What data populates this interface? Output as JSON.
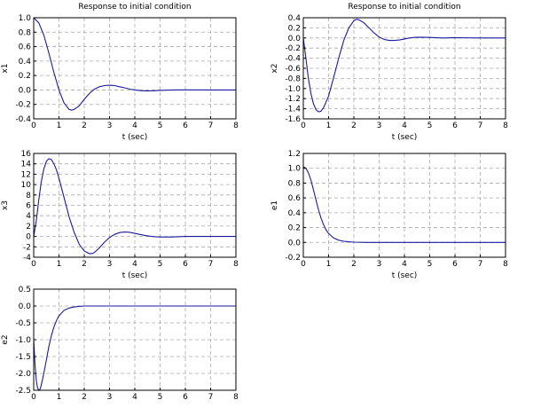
{
  "line_color": "#1b1b9e",
  "grid": true,
  "chart_data": [
    {
      "type": "line",
      "title": "Response to initial condition",
      "xlabel": "t (sec)",
      "ylabel": "x1",
      "xlim": [
        0,
        8
      ],
      "ylim": [
        -0.4,
        1.0
      ],
      "xticks": [
        0,
        1,
        2,
        3,
        4,
        5,
        6,
        7,
        8
      ],
      "xtick_labels": [
        "0",
        "1",
        "2",
        "3",
        "4",
        "5",
        "6",
        "7",
        "8"
      ],
      "yticks": [
        -0.4,
        -0.2,
        0.0,
        0.2,
        0.4,
        0.6,
        0.8,
        1.0
      ],
      "ytick_labels": [
        "-0.4",
        "-0.2",
        "0.0",
        "0.2",
        "0.4",
        "0.6",
        "0.8",
        "1.0"
      ],
      "series": [
        {
          "x": [
            0,
            0.2,
            0.4,
            0.6,
            0.8,
            1.0,
            1.2,
            1.4,
            1.5,
            1.6,
            1.8,
            2.0,
            2.2,
            2.4,
            2.6,
            2.8,
            3.0,
            3.2,
            3.4,
            3.6,
            3.8,
            4.0,
            4.2,
            4.4,
            4.6,
            4.8,
            5.0,
            5.5,
            6.0,
            7.0,
            8.0
          ],
          "y": [
            1.0,
            0.93,
            0.76,
            0.51,
            0.24,
            0.0,
            -0.18,
            -0.27,
            -0.28,
            -0.27,
            -0.22,
            -0.13,
            -0.05,
            0.01,
            0.045,
            0.06,
            0.065,
            0.06,
            0.045,
            0.03,
            0.012,
            0.0,
            -0.008,
            -0.012,
            -0.012,
            -0.01,
            -0.006,
            0.0,
            0.002,
            0.0,
            0.0
          ]
        }
      ]
    },
    {
      "type": "line",
      "title": "Response to initial condition",
      "xlabel": "t (sec)",
      "ylabel": "x2",
      "xlim": [
        0,
        8
      ],
      "ylim": [
        -1.6,
        0.4
      ],
      "xticks": [
        0,
        1,
        2,
        3,
        4,
        5,
        6,
        7,
        8
      ],
      "xtick_labels": [
        "0",
        "1",
        "2",
        "3",
        "4",
        "5",
        "6",
        "7",
        "8"
      ],
      "yticks": [
        -1.6,
        -1.4,
        -1.2,
        -1.0,
        -0.8,
        -0.6,
        -0.4,
        -0.2,
        0.0,
        0.2,
        0.4
      ],
      "ytick_labels": [
        "-1.6",
        "-1.4",
        "-1.2",
        "-1.0",
        "-0.8",
        "-0.6",
        "-0.4",
        "-0.2",
        "0.0",
        "0.2",
        "0.4"
      ],
      "series": [
        {
          "x": [
            0,
            0.1,
            0.2,
            0.3,
            0.4,
            0.5,
            0.6,
            0.7,
            0.8,
            1.0,
            1.2,
            1.4,
            1.6,
            1.8,
            2.0,
            2.1,
            2.2,
            2.4,
            2.6,
            2.8,
            3.0,
            3.2,
            3.4,
            3.6,
            3.8,
            4.0,
            4.2,
            4.4,
            4.6,
            5.0,
            5.5,
            6.0,
            7.0,
            8.0
          ],
          "y": [
            0.0,
            -0.4,
            -0.8,
            -1.1,
            -1.3,
            -1.42,
            -1.46,
            -1.45,
            -1.38,
            -1.15,
            -0.78,
            -0.4,
            -0.05,
            0.2,
            0.34,
            0.37,
            0.36,
            0.3,
            0.2,
            0.1,
            0.02,
            -0.03,
            -0.05,
            -0.05,
            -0.04,
            -0.02,
            0.0,
            0.01,
            0.015,
            0.01,
            0.0,
            0.005,
            0.0,
            0.0
          ]
        }
      ]
    },
    {
      "type": "line",
      "title": "",
      "xlabel": "t (sec)",
      "ylabel": "x3",
      "xlim": [
        0,
        8
      ],
      "ylim": [
        -4,
        16
      ],
      "xticks": [
        0,
        1,
        2,
        3,
        4,
        5,
        6,
        7,
        8
      ],
      "xtick_labels": [
        "0",
        "1",
        "2",
        "3",
        "4",
        "5",
        "6",
        "7",
        "8"
      ],
      "yticks": [
        -4,
        -2,
        0,
        2,
        4,
        6,
        8,
        10,
        12,
        14,
        16
      ],
      "ytick_labels": [
        "-4",
        "-2",
        "0",
        "2",
        "4",
        "6",
        "8",
        "10",
        "12",
        "14",
        "16"
      ],
      "series": [
        {
          "x": [
            0,
            0.1,
            0.2,
            0.3,
            0.4,
            0.5,
            0.6,
            0.7,
            0.8,
            0.9,
            1.0,
            1.2,
            1.4,
            1.6,
            1.8,
            2.0,
            2.2,
            2.3,
            2.4,
            2.6,
            2.8,
            3.0,
            3.2,
            3.4,
            3.6,
            3.8,
            4.0,
            4.2,
            4.4,
            4.6,
            4.8,
            5.0,
            5.5,
            6.0,
            7.0,
            8.0
          ],
          "y": [
            0.0,
            3.0,
            7.0,
            10.5,
            13.0,
            14.5,
            15.0,
            14.8,
            14.0,
            12.8,
            11.2,
            7.5,
            3.8,
            0.8,
            -1.5,
            -2.8,
            -3.3,
            -3.3,
            -3.1,
            -2.2,
            -1.1,
            -0.2,
            0.4,
            0.75,
            0.85,
            0.8,
            0.6,
            0.4,
            0.2,
            0.05,
            -0.05,
            -0.1,
            -0.1,
            0.0,
            0.0,
            0.0
          ]
        }
      ]
    },
    {
      "type": "line",
      "title": "",
      "xlabel": "t (sec)",
      "ylabel": "e1",
      "xlim": [
        0,
        8
      ],
      "ylim": [
        -0.2,
        1.2
      ],
      "xticks": [
        0,
        1,
        2,
        3,
        4,
        5,
        6,
        7,
        8
      ],
      "xtick_labels": [
        "0",
        "1",
        "2",
        "3",
        "4",
        "5",
        "6",
        "7",
        "8"
      ],
      "yticks": [
        -0.2,
        0.0,
        0.2,
        0.4,
        0.6,
        0.8,
        1.0,
        1.2
      ],
      "ytick_labels": [
        "-0.2",
        "0.0",
        "0.2",
        "0.4",
        "0.6",
        "0.8",
        "1.0",
        "1.2"
      ],
      "series": [
        {
          "x": [
            0,
            0.1,
            0.2,
            0.3,
            0.4,
            0.5,
            0.6,
            0.7,
            0.8,
            0.9,
            1.0,
            1.2,
            1.4,
            1.6,
            1.8,
            2.0,
            2.5,
            3.0,
            4.0,
            5.0,
            6.0,
            7.0,
            8.0
          ],
          "y": [
            1.02,
            1.0,
            0.94,
            0.84,
            0.71,
            0.57,
            0.44,
            0.33,
            0.24,
            0.17,
            0.12,
            0.06,
            0.03,
            0.015,
            0.008,
            0.004,
            0.0,
            0.0,
            0.0,
            0.0,
            0.0,
            0.0,
            0.0
          ]
        }
      ]
    },
    {
      "type": "line",
      "title": "",
      "xlabel": "",
      "ylabel": "e2",
      "xlim": [
        0,
        8
      ],
      "ylim": [
        -2.5,
        0.5
      ],
      "xticks": [
        0,
        1,
        2,
        3,
        4,
        5,
        6,
        7,
        8
      ],
      "xtick_labels": [
        "0",
        "1",
        "2",
        "3",
        "4",
        "5",
        "6",
        "7",
        "8"
      ],
      "yticks": [
        -2.5,
        -2.0,
        -1.5,
        -1.0,
        -0.5,
        0.0,
        0.5
      ],
      "ytick_labels": [
        "-2.5",
        "-2.0",
        "-1.5",
        "-1.0",
        "-0.5",
        "0.0",
        "0.5"
      ],
      "series": [
        {
          "x": [
            0,
            0.05,
            0.1,
            0.15,
            0.2,
            0.25,
            0.3,
            0.4,
            0.5,
            0.6,
            0.7,
            0.8,
            0.9,
            1.0,
            1.2,
            1.4,
            1.6,
            1.8,
            2.0,
            2.5,
            3.0,
            4.0,
            5.0,
            6.0,
            7.0,
            8.0
          ],
          "y": [
            -1.0,
            -1.7,
            -2.2,
            -2.43,
            -2.5,
            -2.47,
            -2.35,
            -2.0,
            -1.6,
            -1.2,
            -0.88,
            -0.62,
            -0.43,
            -0.29,
            -0.13,
            -0.06,
            -0.03,
            -0.01,
            0.0,
            0.0,
            0.0,
            0.0,
            0.0,
            0.0,
            0.0,
            0.0
          ]
        }
      ]
    }
  ]
}
